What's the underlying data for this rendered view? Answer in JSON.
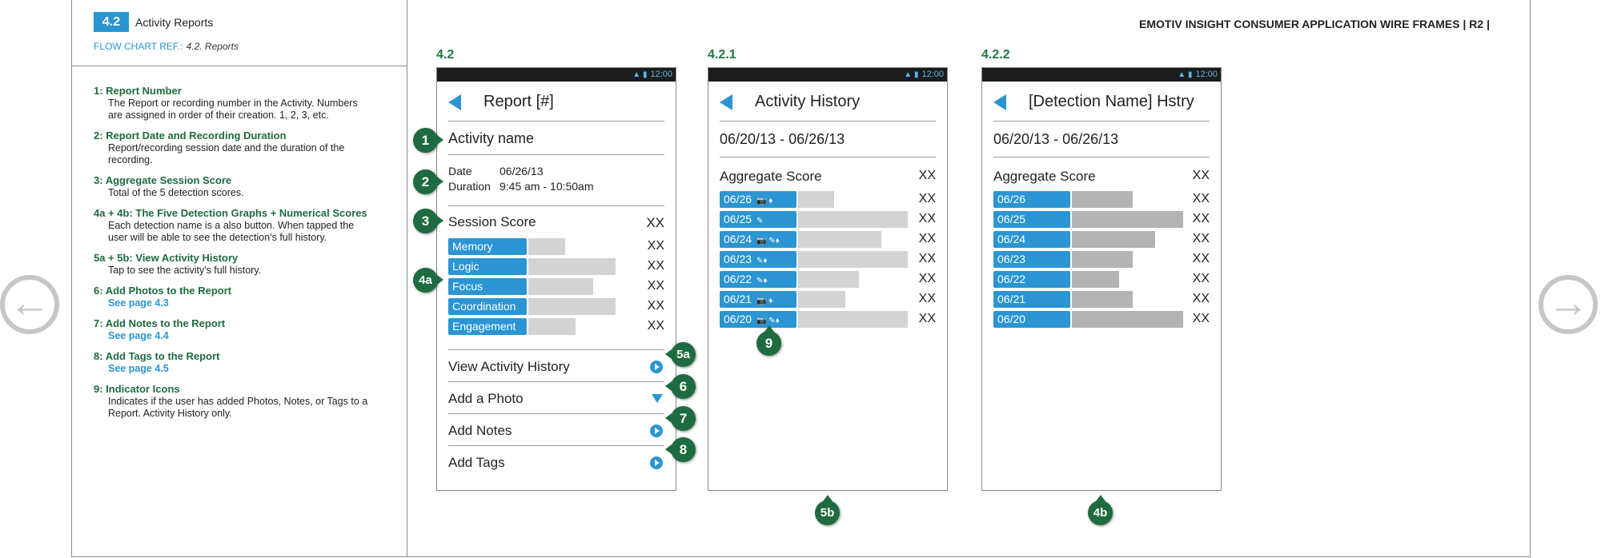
{
  "section": {
    "number": "4.2",
    "title": "Activity Reports",
    "flow_ref_label": "FLOW CHART REF.:",
    "flow_ref_value": "4.2. Reports"
  },
  "doc_title": "EMOTIV INSIGHT CONSUMER APPLICATION WIRE FRAMES  | R2 |",
  "notes": [
    {
      "heading": "1: Report Number",
      "lines": [
        "The Report or recording number in the Activity. Numbers",
        "are assigned in order of their creation. 1, 2, 3, etc."
      ],
      "link": false
    },
    {
      "heading": "2: Report Date and Recording Duration",
      "lines": [
        "Report/recording session date and the duration of the",
        "recording."
      ],
      "link": false
    },
    {
      "heading": "3: Aggregate Session Score",
      "lines": [
        "Total of the 5 detection scores."
      ],
      "link": false
    },
    {
      "heading": "4a + 4b: The Five Detection Graphs + Numerical Scores",
      "lines": [
        "Each detection name is a also button. When tapped the",
        "user will be able to see the detection's full history."
      ],
      "link": false
    },
    {
      "heading": "5a + 5b: View Activity History",
      "lines": [
        "Tap to see the activity's full history."
      ],
      "link": false
    },
    {
      "heading": "6: Add Photos to the Report",
      "lines": [
        "See page 4.3"
      ],
      "link": true
    },
    {
      "heading": "7: Add Notes to the Report",
      "lines": [
        "See page 4.4"
      ],
      "link": true
    },
    {
      "heading": "8: Add Tags to the Report",
      "lines": [
        "See page 4.5"
      ],
      "link": true
    },
    {
      "heading": "9: Indicator Icons",
      "lines": [
        "Indicates if the user has added Photos, Notes, or Tags to a",
        "Report. Activity History only."
      ],
      "link": false
    }
  ],
  "nav": {
    "prev_glyph": "←",
    "next_glyph": "→"
  },
  "status_time": "12:00",
  "report": {
    "label": "4.2",
    "title": "Report [#]",
    "activity_name": "Activity name",
    "date_label": "Date",
    "date_value": "06/26/13",
    "duration_label": "Duration",
    "duration_value": "9:45 am - 10:50am",
    "session_label": "Session Score",
    "session_value": "XX",
    "detections": [
      {
        "name": "Memory",
        "value": "XX",
        "level": 0.33
      },
      {
        "name": "Logic",
        "value": "XX",
        "level": 0.78
      },
      {
        "name": "Focus",
        "value": "XX",
        "level": 0.58
      },
      {
        "name": "Coordination",
        "value": "XX",
        "level": 0.78
      },
      {
        "name": "Engagement",
        "value": "XX",
        "level": 0.42
      }
    ],
    "actions": [
      {
        "label": "View Activity History",
        "kind": "arrow"
      },
      {
        "label": "Add a Photo",
        "kind": "dropdown"
      },
      {
        "label": "Add Notes",
        "kind": "arrow"
      },
      {
        "label": "Add Tags",
        "kind": "arrow"
      }
    ]
  },
  "history": {
    "label": "4.2.1",
    "title": "Activity History",
    "range": "06/20/13 - 06/26/13",
    "aggregate_label": "Aggregate Score",
    "aggregate_value": "XX",
    "rows": [
      {
        "date": "06/26",
        "icons": "📷 ♦",
        "value": "XX",
        "level": 0.32
      },
      {
        "date": "06/25",
        "icons": "✎",
        "value": "XX",
        "level": 0.98
      },
      {
        "date": "06/24",
        "icons": "📷 ✎♦",
        "value": "XX",
        "level": 0.74
      },
      {
        "date": "06/23",
        "icons": "✎♦",
        "value": "XX",
        "level": 0.98
      },
      {
        "date": "06/22",
        "icons": "✎♦",
        "value": "XX",
        "level": 0.54
      },
      {
        "date": "06/21",
        "icons": "📷 ♦",
        "value": "XX",
        "level": 0.42
      },
      {
        "date": "06/20",
        "icons": "📷 ✎♦",
        "value": "XX",
        "level": 0.98
      }
    ]
  },
  "detection_history": {
    "label": "4.2.2",
    "title": "[Detection Name] Hstry",
    "range": "06/20/13 - 06/26/13",
    "aggregate_label": "Aggregate Score",
    "aggregate_value": "XX",
    "rows": [
      {
        "date": "06/26",
        "value": "XX",
        "level": 0.54
      },
      {
        "date": "06/25",
        "value": "XX",
        "level": 0.99
      },
      {
        "date": "06/24",
        "value": "XX",
        "level": 0.74
      },
      {
        "date": "06/23",
        "value": "XX",
        "level": 0.54
      },
      {
        "date": "06/22",
        "value": "XX",
        "level": 0.42
      },
      {
        "date": "06/21",
        "value": "XX",
        "level": 0.54
      },
      {
        "date": "06/20",
        "value": "XX",
        "level": 0.99
      }
    ]
  },
  "callouts": [
    "1",
    "2",
    "3",
    "4a",
    "5a",
    "6",
    "7",
    "8",
    "9",
    "5b",
    "4b"
  ],
  "colors": {
    "accent": "#2b95d3",
    "callout": "#1e6b3f",
    "bar_light": "#d3d3d3",
    "bar_dark": "#b3b3b3",
    "status_bar": "#1c1c1c"
  }
}
